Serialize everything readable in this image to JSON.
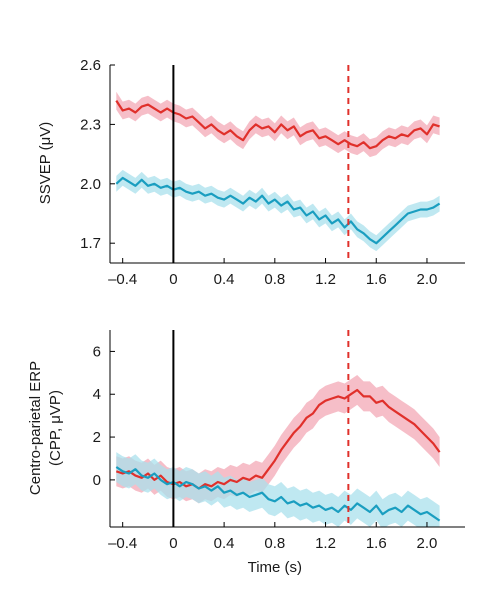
{
  "chart_data": [
    {
      "type": "line",
      "title": "",
      "xlabel": "",
      "ylabel": "SSVEP (μV)",
      "xlim": [
        -0.5,
        2.3
      ],
      "ylim": [
        1.6,
        2.6
      ],
      "xticks": [
        -0.4,
        0,
        0.4,
        0.8,
        1.2,
        1.6,
        2.0
      ],
      "xtick_labels": [
        "–0.4",
        "0",
        "0.4",
        "0.8",
        "1.2",
        "1.6",
        "2.0"
      ],
      "yticks": [
        1.7,
        2.0,
        2.3,
        2.6
      ],
      "ytick_labels": [
        "1.7",
        "2.0",
        "2.3",
        "2.6"
      ],
      "grid": false,
      "vlines": [
        {
          "x": 0,
          "style": "solid",
          "color": "#000000"
        },
        {
          "x": 1.38,
          "style": "dashed",
          "color": "#e0302b"
        }
      ],
      "series": [
        {
          "color": "#e0302b",
          "band_color": "#f3a8b6",
          "x": [
            -0.45,
            -0.4,
            -0.35,
            -0.3,
            -0.25,
            -0.2,
            -0.15,
            -0.1,
            -0.05,
            0.0,
            0.05,
            0.1,
            0.15,
            0.2,
            0.25,
            0.3,
            0.35,
            0.4,
            0.45,
            0.5,
            0.55,
            0.6,
            0.65,
            0.7,
            0.75,
            0.8,
            0.85,
            0.9,
            0.95,
            1.0,
            1.05,
            1.1,
            1.15,
            1.2,
            1.25,
            1.3,
            1.35,
            1.4,
            1.45,
            1.5,
            1.55,
            1.6,
            1.65,
            1.7,
            1.75,
            1.8,
            1.85,
            1.9,
            1.95,
            2.0,
            2.05,
            2.1
          ],
          "y": [
            2.42,
            2.37,
            2.38,
            2.36,
            2.39,
            2.4,
            2.38,
            2.36,
            2.38,
            2.36,
            2.35,
            2.33,
            2.34,
            2.31,
            2.28,
            2.3,
            2.27,
            2.25,
            2.27,
            2.24,
            2.22,
            2.27,
            2.3,
            2.28,
            2.29,
            2.26,
            2.3,
            2.27,
            2.29,
            2.24,
            2.26,
            2.27,
            2.23,
            2.24,
            2.22,
            2.2,
            2.22,
            2.2,
            2.19,
            2.21,
            2.18,
            2.19,
            2.22,
            2.24,
            2.23,
            2.25,
            2.24,
            2.27,
            2.28,
            2.25,
            2.3,
            2.29
          ],
          "err": 0.045
        },
        {
          "color": "#1a9ec0",
          "band_color": "#a9e0ec",
          "x": [
            -0.45,
            -0.4,
            -0.35,
            -0.3,
            -0.25,
            -0.2,
            -0.15,
            -0.1,
            -0.05,
            0.0,
            0.05,
            0.1,
            0.15,
            0.2,
            0.25,
            0.3,
            0.35,
            0.4,
            0.45,
            0.5,
            0.55,
            0.6,
            0.65,
            0.7,
            0.75,
            0.8,
            0.85,
            0.9,
            0.95,
            1.0,
            1.05,
            1.1,
            1.15,
            1.2,
            1.25,
            1.3,
            1.35,
            1.4,
            1.45,
            1.5,
            1.55,
            1.6,
            1.65,
            1.7,
            1.75,
            1.8,
            1.85,
            1.9,
            1.95,
            2.0,
            2.05,
            2.1
          ],
          "y": [
            2.0,
            2.03,
            2.01,
            1.99,
            2.02,
            1.99,
            2.0,
            1.98,
            1.99,
            1.97,
            1.98,
            1.96,
            1.95,
            1.96,
            1.94,
            1.95,
            1.93,
            1.92,
            1.94,
            1.92,
            1.9,
            1.93,
            1.91,
            1.94,
            1.9,
            1.92,
            1.89,
            1.91,
            1.87,
            1.88,
            1.84,
            1.86,
            1.82,
            1.84,
            1.8,
            1.82,
            1.78,
            1.81,
            1.77,
            1.75,
            1.72,
            1.7,
            1.73,
            1.76,
            1.79,
            1.82,
            1.85,
            1.86,
            1.87,
            1.87,
            1.88,
            1.9
          ],
          "err": 0.04
        }
      ]
    },
    {
      "type": "line",
      "title": "",
      "xlabel": "Time (s)",
      "ylabel": "Centro-parietal ERP\n(CPP, μVP)",
      "ylabel_lines": [
        "Centro-parietal ERP",
        "(CPP, μVP)"
      ],
      "xlim": [
        -0.5,
        2.3
      ],
      "ylim": [
        -2.2,
        7.0
      ],
      "xticks": [
        -0.4,
        0,
        0.4,
        0.8,
        1.2,
        1.6,
        2.0
      ],
      "xtick_labels": [
        "–0.4",
        "0",
        "0.4",
        "0.8",
        "1.2",
        "1.6",
        "2.0"
      ],
      "yticks": [
        0,
        2,
        4,
        6
      ],
      "ytick_labels": [
        "0",
        "2",
        "4",
        "6"
      ],
      "grid": false,
      "vlines": [
        {
          "x": 0,
          "style": "solid",
          "color": "#000000"
        },
        {
          "x": 1.38,
          "style": "dashed",
          "color": "#e0302b"
        }
      ],
      "series": [
        {
          "color": "#e0302b",
          "band_color": "#f3a8b6",
          "x": [
            -0.45,
            -0.4,
            -0.35,
            -0.3,
            -0.25,
            -0.2,
            -0.15,
            -0.1,
            -0.05,
            0.0,
            0.05,
            0.1,
            0.15,
            0.2,
            0.25,
            0.3,
            0.35,
            0.4,
            0.45,
            0.5,
            0.55,
            0.6,
            0.65,
            0.7,
            0.75,
            0.8,
            0.85,
            0.9,
            0.95,
            1.0,
            1.05,
            1.1,
            1.15,
            1.2,
            1.25,
            1.3,
            1.35,
            1.4,
            1.45,
            1.5,
            1.55,
            1.6,
            1.65,
            1.7,
            1.75,
            1.8,
            1.85,
            1.9,
            1.95,
            2.0,
            2.05,
            2.1
          ],
          "y": [
            0.4,
            0.3,
            0.4,
            0.2,
            0.1,
            0.3,
            0.0,
            0.2,
            -0.1,
            -0.2,
            -0.1,
            -0.3,
            -0.2,
            -0.4,
            -0.2,
            -0.3,
            -0.1,
            -0.2,
            0.0,
            -0.1,
            0.1,
            0.0,
            0.2,
            0.1,
            0.5,
            0.9,
            1.4,
            1.8,
            2.2,
            2.5,
            2.9,
            3.1,
            3.5,
            3.7,
            3.8,
            3.9,
            3.8,
            4.0,
            4.2,
            3.9,
            3.9,
            3.6,
            3.7,
            3.4,
            3.2,
            3.0,
            2.8,
            2.6,
            2.3,
            2.0,
            1.7,
            1.3
          ],
          "err": 0.7
        },
        {
          "color": "#1a9ec0",
          "band_color": "#a9e0ec",
          "x": [
            -0.45,
            -0.4,
            -0.35,
            -0.3,
            -0.25,
            -0.2,
            -0.15,
            -0.1,
            -0.05,
            0.0,
            0.05,
            0.1,
            0.15,
            0.2,
            0.25,
            0.3,
            0.35,
            0.4,
            0.45,
            0.5,
            0.55,
            0.6,
            0.65,
            0.7,
            0.75,
            0.8,
            0.85,
            0.9,
            0.95,
            1.0,
            1.05,
            1.1,
            1.15,
            1.2,
            1.25,
            1.3,
            1.35,
            1.4,
            1.45,
            1.5,
            1.55,
            1.6,
            1.65,
            1.7,
            1.75,
            1.8,
            1.85,
            1.9,
            1.95,
            2.0,
            2.05,
            2.1
          ],
          "y": [
            0.6,
            0.4,
            0.3,
            0.5,
            0.2,
            0.1,
            0.3,
            0.0,
            -0.2,
            -0.1,
            -0.3,
            -0.1,
            -0.2,
            -0.4,
            -0.3,
            -0.5,
            -0.3,
            -0.6,
            -0.5,
            -0.7,
            -0.6,
            -0.8,
            -0.7,
            -0.6,
            -0.9,
            -1.0,
            -0.8,
            -1.1,
            -1.0,
            -1.2,
            -1.1,
            -1.3,
            -1.2,
            -1.4,
            -1.3,
            -1.5,
            -1.2,
            -1.4,
            -1.1,
            -1.3,
            -1.5,
            -1.2,
            -1.6,
            -1.4,
            -1.3,
            -1.5,
            -1.2,
            -1.4,
            -1.6,
            -1.5,
            -1.7,
            -1.9
          ],
          "err": 0.7
        }
      ]
    }
  ]
}
